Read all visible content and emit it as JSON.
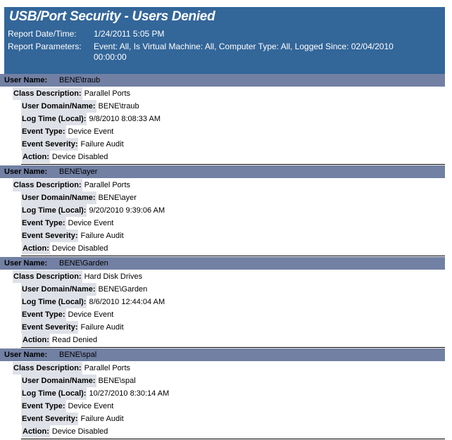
{
  "header": {
    "title": "USB/Port Security - Users Denied",
    "date_label": "Report Date/Time:",
    "date_value": "1/24/2011 5:05 PM",
    "params_label": "Report Parameters:",
    "params_value": "Event:  All, Is Virtual Machine:  All, Computer Type:  All, Logged Since: 02/04/2010 00:00:00"
  },
  "labels": {
    "user_name": "User Name:",
    "class_description": "Class Description:",
    "user_domain": "User Domain/Name:",
    "log_time": "Log Time (Local):",
    "event_type": "Event Type:",
    "event_severity": "Event Severity:",
    "action": "Action:"
  },
  "records": [
    {
      "user_name": "BENE\\traub",
      "class_description": "Parallel Ports",
      "user_domain": "BENE\\traub",
      "log_time": "9/8/2010 8:08:33 AM",
      "event_type": "Device Event",
      "event_severity": "Failure Audit",
      "action": "Device Disabled"
    },
    {
      "user_name": "BENE\\ayer",
      "class_description": "Parallel Ports",
      "user_domain": "BENE\\ayer",
      "log_time": "9/20/2010 9:39:06 AM",
      "event_type": "Device Event",
      "event_severity": "Failure Audit",
      "action": "Device Disabled"
    },
    {
      "user_name": "BENE\\Garden",
      "class_description": "Hard Disk Drives",
      "user_domain": "BENE\\Garden",
      "log_time": "8/6/2010 12:44:04 AM",
      "event_type": "Device Event",
      "event_severity": "Failure Audit",
      "action": "Read Denied"
    },
    {
      "user_name": "BENE\\spal",
      "class_description": "Parallel Ports",
      "user_domain": "BENE\\spal",
      "log_time": "10/27/2010 8:30:14 AM",
      "event_type": "Device Event",
      "event_severity": "Failure Audit",
      "action": "Device Disabled"
    }
  ]
}
